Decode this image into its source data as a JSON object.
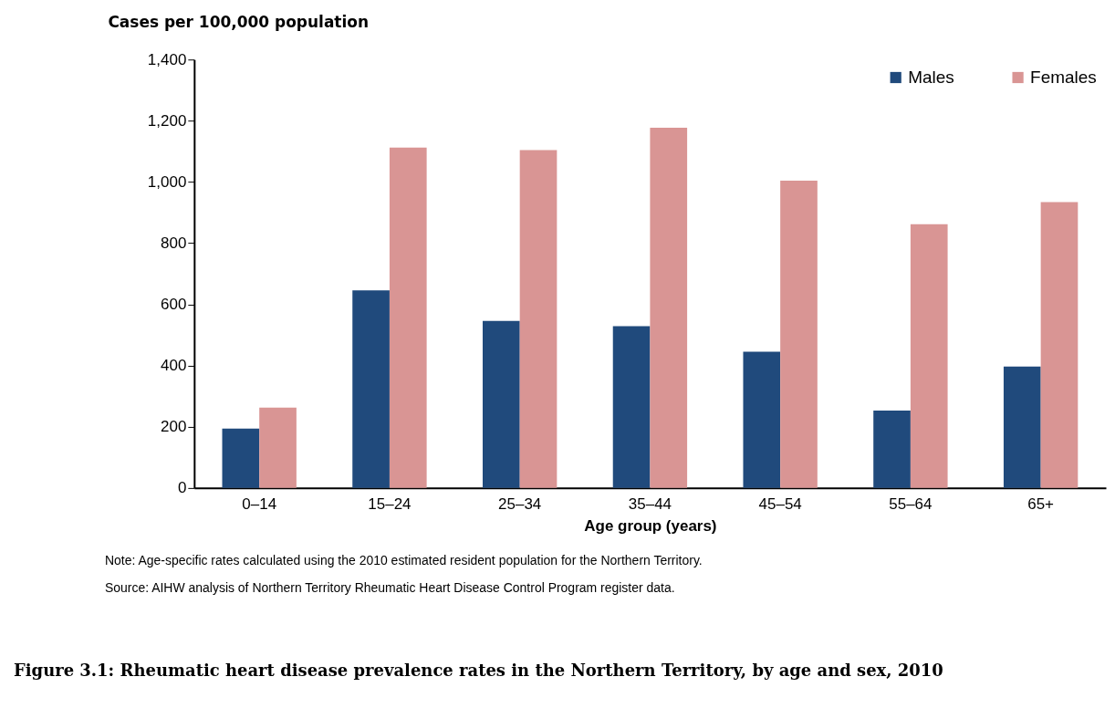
{
  "chart_data": {
    "type": "bar",
    "title": "Figure 3.1: Rheumatic heart disease prevalence rates in the Northern Territory, by age and sex, 2010",
    "ylabel": "Cases per 100,000 population",
    "xlabel": "Age group (years)",
    "categories": [
      "0–14",
      "15–24",
      "25–34",
      "35–44",
      "45–54",
      "55–64",
      "65+"
    ],
    "series": [
      {
        "name": "Males",
        "color": "#204a7c",
        "values": [
          194,
          646,
          546,
          529,
          445,
          253,
          397
        ]
      },
      {
        "name": "Females",
        "color": "#d99594",
        "values": [
          263,
          1112,
          1104,
          1177,
          1004,
          862,
          934
        ]
      }
    ],
    "ylim": [
      0,
      1400
    ],
    "yticks": [
      {
        "value": 0,
        "label": "0"
      },
      {
        "value": 200,
        "label": "200"
      },
      {
        "value": 400,
        "label": "400"
      },
      {
        "value": 600,
        "label": "600"
      },
      {
        "value": 800,
        "label": "800"
      },
      {
        "value": 1000,
        "label": "1,000"
      },
      {
        "value": 1200,
        "label": "1,200"
      },
      {
        "value": 1400,
        "label": "1,400"
      }
    ],
    "grid": false,
    "legend": "top right",
    "annotations": [
      "Note: Age-specific rates calculated using the 2010 estimated resident population for the Northern Territory.",
      "Source: AIHW analysis of Northern Territory Rheumatic Heart Disease Control Program register data."
    ]
  }
}
